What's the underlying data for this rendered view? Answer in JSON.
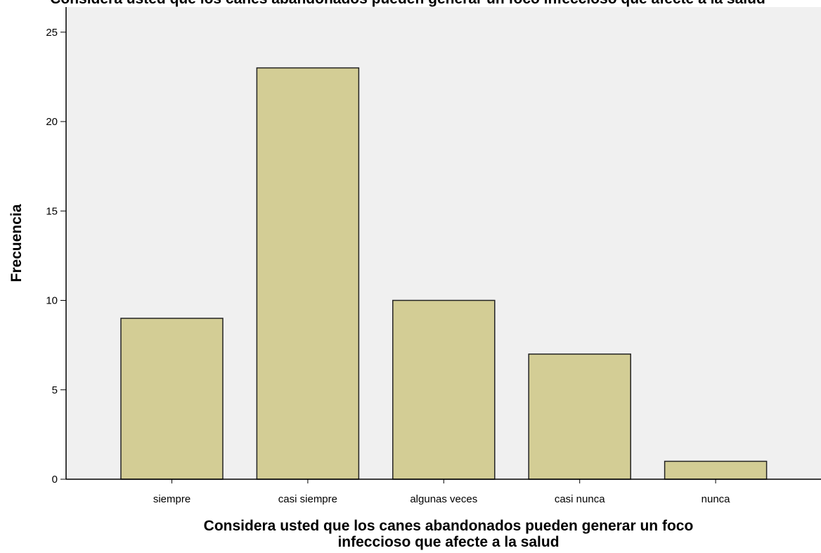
{
  "chart_data": {
    "type": "bar",
    "title": "Considera usted que los canes abandonados pueden generar un foco infeccioso que afecte a la salud",
    "categories": [
      "siempre",
      "casi siempre",
      "algunas veces",
      "casi nunca",
      "nunca"
    ],
    "values": [
      9,
      23,
      10,
      7,
      1
    ],
    "xlabel_lines": [
      "Considera usted que los canes abandonados pueden generar un foco",
      "infeccioso que afecte a la salud"
    ],
    "ylabel": "Frecuencia",
    "ylim": [
      0,
      26
    ],
    "yticks": [
      0,
      5,
      10,
      15,
      20,
      25
    ],
    "grid": false,
    "legend": "none",
    "bar_color": "#d3cd95",
    "bar_edge_color": "#222222",
    "plot_bg_color": "#f0f0f0"
  }
}
